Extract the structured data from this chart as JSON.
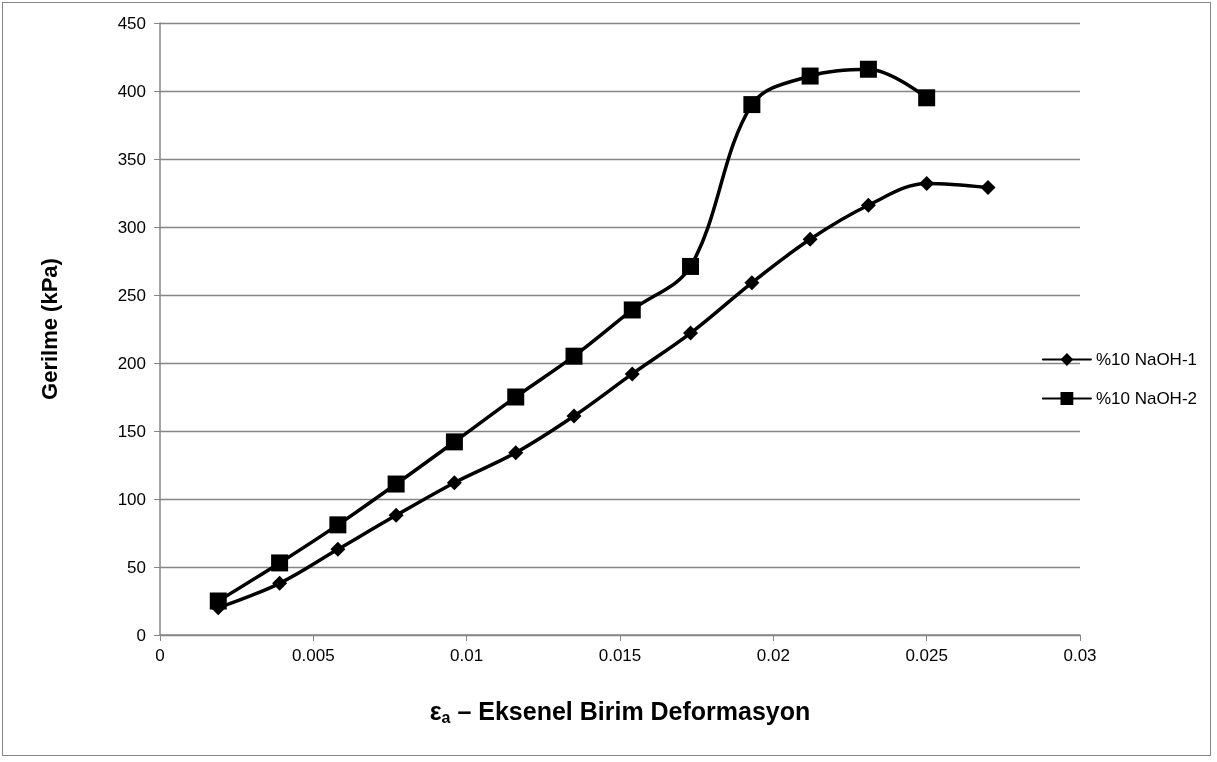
{
  "chart_data": {
    "type": "line",
    "xlabel": "ε$_{a}$ – Eksenel Birim Deformasyon",
    "ylabel": "Gerilme (kPa)",
    "x": [
      0.0019,
      0.0039,
      0.0058,
      0.0077,
      0.0096,
      0.0116,
      0.0135,
      0.0154,
      0.0173,
      0.0193,
      0.0212,
      0.0231,
      0.025,
      0.027
    ],
    "series": [
      {
        "name": "%10 NaOH-1",
        "color": "#000000",
        "marker": "diamond",
        "values": [
          20,
          38,
          63,
          88,
          112,
          134,
          161,
          192,
          222,
          259,
          291,
          316,
          332,
          329
        ]
      },
      {
        "name": "%10 NaOH-2",
        "color": "#000000",
        "marker": "square",
        "values": [
          25,
          53,
          81,
          111,
          142,
          175,
          205,
          239,
          271,
          390,
          411,
          416,
          395,
          null
        ]
      }
    ],
    "xlim": [
      0,
      0.03
    ],
    "xticks": [
      0,
      0.005,
      0.01,
      0.015,
      0.02,
      0.025,
      0.03
    ],
    "ylim": [
      0,
      450
    ],
    "yticks": [
      0,
      50,
      100,
      150,
      200,
      250,
      300,
      350,
      400,
      450
    ],
    "grid": "y",
    "legend": "right",
    "line_style": "solid"
  }
}
